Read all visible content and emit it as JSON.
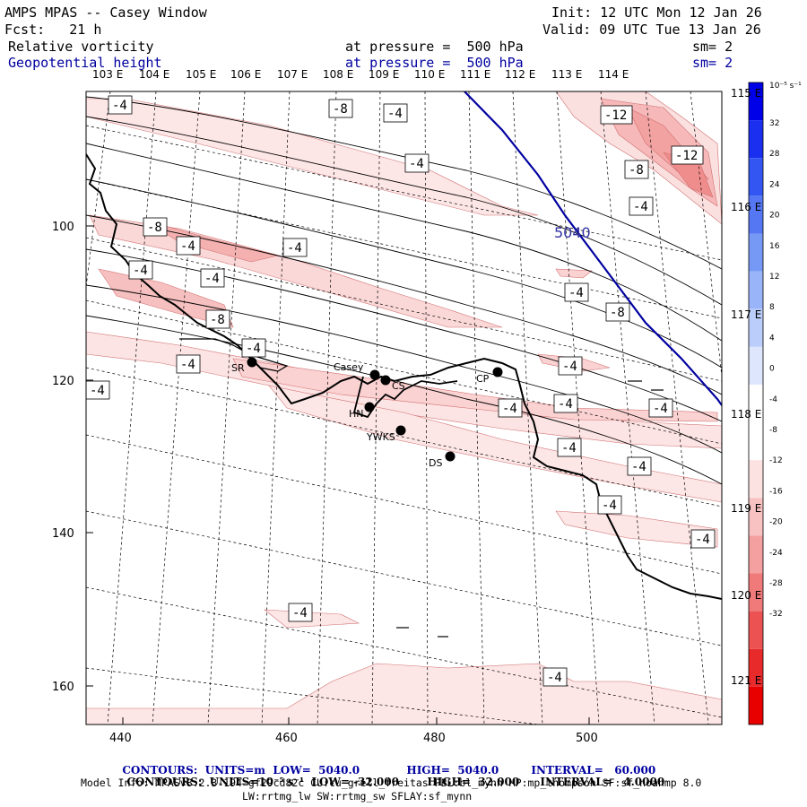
{
  "header": {
    "title": "AMPS MPAS -- Casey Window",
    "init": "Init: 12 UTC Mon 12 Jan 26",
    "fcst": "Fcst:   21 h",
    "valid": "Valid: 09 UTC Tue 13 Jan 26",
    "field1": "Relative vorticity",
    "field1_pressure": "at pressure =  500 hPa",
    "field1_sm": "sm= 2",
    "field2": "Geopotential height",
    "field2_pressure": "at pressure =  500 hPa",
    "field2_sm": "sm= 2"
  },
  "top_lon_labels": [
    "103 E",
    "104 E",
    "105 E",
    "106 E",
    "107 E",
    "108 E",
    "109 E",
    "110 E",
    "111 E",
    "112 E",
    "113 E",
    "114 E"
  ],
  "right_lon_labels": [
    "115 E",
    "116 E",
    "117 E",
    "118 E",
    "119 E",
    "120 E",
    "121 E"
  ],
  "x_axis_ticks": [
    "440",
    "460",
    "480",
    "500"
  ],
  "y_axis_ticks": [
    "100",
    "120",
    "140",
    "160"
  ],
  "colorbar": {
    "unit": "10⁻⁵ s⁻¹",
    "labels": [
      "32",
      "28",
      "24",
      "20",
      "16",
      "12",
      "8",
      "4",
      "0",
      "-4",
      "-8",
      "-12",
      "-16",
      "-20",
      "-24",
      "-28",
      "-32"
    ],
    "colors": [
      "#0000e8",
      "#1a2ff0",
      "#3355f2",
      "#5577f4",
      "#7799f6",
      "#99b4f8",
      "#bbcdfa",
      "#dde6fc",
      "#ffffff",
      "#ffffff",
      "#fde2e2",
      "#f8c2c2",
      "#f4a0a0",
      "#f07a7a",
      "#ec5252",
      "#e82a2a",
      "#e80000"
    ]
  },
  "stations": [
    {
      "id": "SR",
      "label": "SR"
    },
    {
      "id": "Casey",
      "label": "Casey"
    },
    {
      "id": "CS",
      "label": "CS"
    },
    {
      "id": "CP",
      "label": "CP"
    },
    {
      "id": "HN",
      "label": "HN"
    },
    {
      "id": "YWKS",
      "label": "YWKS"
    },
    {
      "id": "DS",
      "label": "DS"
    }
  ],
  "contour_labels": [
    "-4",
    "-8",
    "-4",
    "-4",
    "-8",
    "-4",
    "-4",
    "-4",
    "-4",
    "-8",
    "-4",
    "-4",
    "-4",
    "-8",
    "-4",
    "-4",
    "-4",
    "-4",
    "-4",
    "-4",
    "-4",
    "-4",
    "-4",
    "-4",
    "-4",
    "-12",
    "-8",
    "-12",
    "-4",
    "-8",
    "-4",
    "-4"
  ],
  "height_label": "5040",
  "footer": {
    "line1_a": "CONTOURS:  UNITS=m  LOW=  5040.0",
    "line1_b": "HIGH=  5040.0",
    "line1_c": "INTERVAL=   60.000",
    "line2_a": "CONTOURS:  UNITS=10⁻⁵ s⁻¹  LOW= -32.000",
    "line2_b": "HIGH=  32.000",
    "line2_c": "INTERVAL=   4.0000",
    "model_info": "Model Info: MPASv8.2.3-194-gf29cd82c CU:cu_grell_freitas PBL:bl_mynn MP:mp_thompson SF:sf_noahmp 8.0",
    "model_info2": "LW:rrtmg_lw SW:rrtmg_sw SFLAY:sf_mynn"
  }
}
